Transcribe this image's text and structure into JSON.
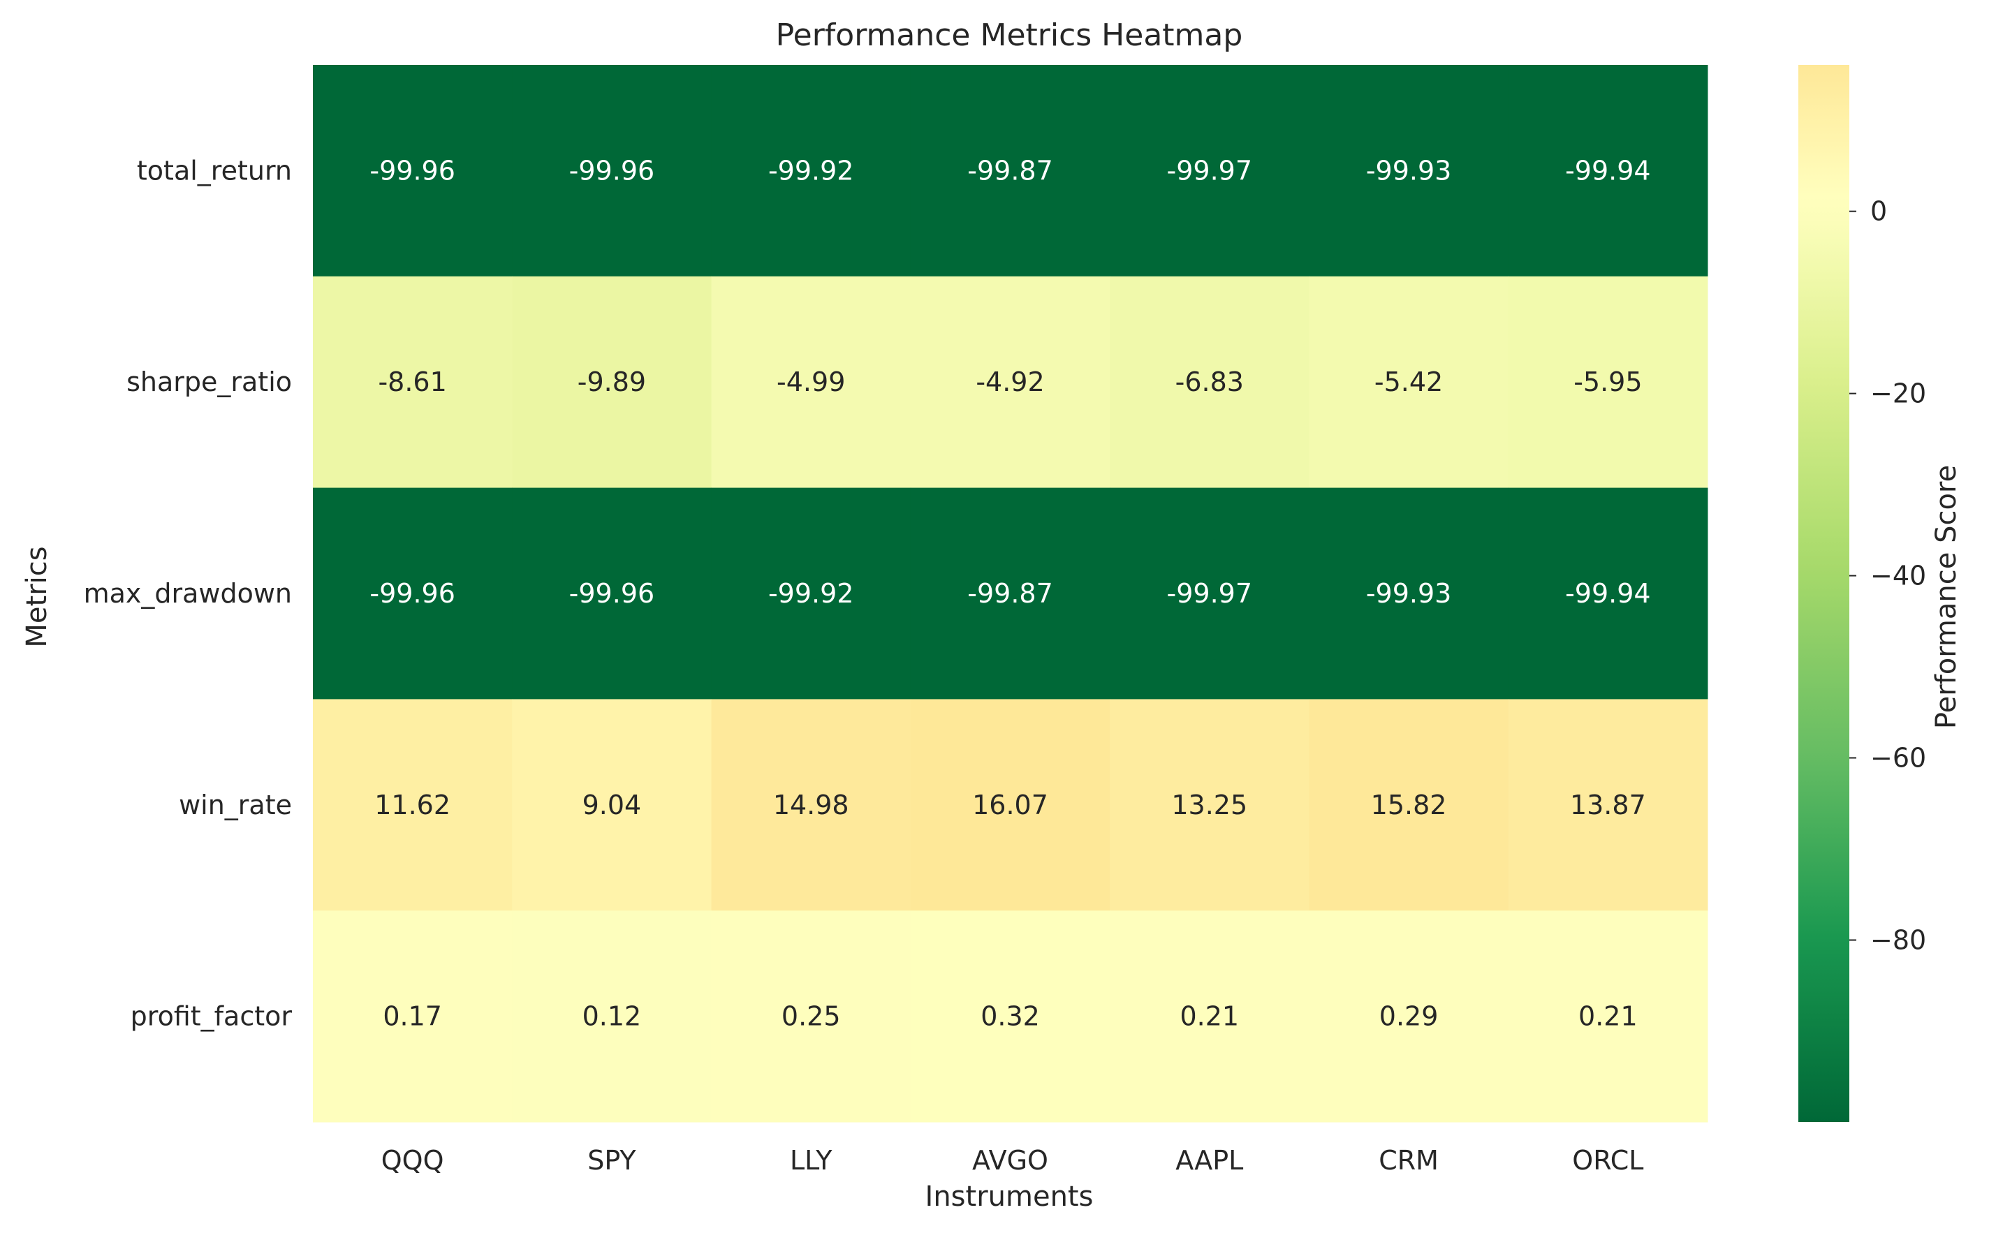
{
  "chart_data": {
    "type": "heatmap",
    "title": "Performance Metrics Heatmap",
    "xlabel": "Instruments",
    "ylabel": "Metrics",
    "x_categories": [
      "QQQ",
      "SPY",
      "LLY",
      "AVGO",
      "AAPL",
      "CRM",
      "ORCL"
    ],
    "y_categories": [
      "total_return",
      "sharpe_ratio",
      "max_drawdown",
      "win_rate",
      "profit_factor"
    ],
    "values": [
      [
        -99.96,
        -99.96,
        -99.92,
        -99.87,
        -99.97,
        -99.93,
        -99.94
      ],
      [
        -8.61,
        -9.89,
        -4.99,
        -4.92,
        -6.83,
        -5.42,
        -5.95
      ],
      [
        -99.96,
        -99.96,
        -99.92,
        -99.87,
        -99.97,
        -99.93,
        -99.94
      ],
      [
        11.62,
        9.04,
        14.98,
        16.07,
        13.25,
        15.82,
        13.87
      ],
      [
        0.17,
        0.12,
        0.25,
        0.32,
        0.21,
        0.29,
        0.21
      ]
    ],
    "value_labels": [
      [
        "-99.96",
        "-99.96",
        "-99.92",
        "-99.87",
        "-99.97",
        "-99.93",
        "-99.94"
      ],
      [
        "-8.61",
        "-9.89",
        "-4.99",
        "-4.92",
        "-6.83",
        "-5.42",
        "-5.95"
      ],
      [
        "-99.96",
        "-99.96",
        "-99.92",
        "-99.87",
        "-99.97",
        "-99.93",
        "-99.94"
      ],
      [
        "11.62",
        "9.04",
        "14.98",
        "16.07",
        "13.25",
        "15.82",
        "13.87"
      ],
      [
        "0.17",
        "0.12",
        "0.25",
        "0.32",
        "0.21",
        "0.29",
        "0.21"
      ]
    ],
    "colormap": "RdYlGn_r",
    "colorbar": {
      "label": "Performance Score",
      "range": [
        -99.97,
        16.07
      ],
      "ticks": [
        0,
        -20,
        -40,
        -60,
        -80
      ],
      "tick_labels": [
        "0",
        "−20",
        "−40",
        "−60",
        "−80"
      ]
    },
    "grid": false
  },
  "colors": {
    "text_dark": "#262626",
    "text_light": "#ffffff",
    "colormap_stops": [
      "#006837",
      "#1a9850",
      "#66bd63",
      "#a6d96a",
      "#d9ef8b",
      "#ffffbf",
      "#fee08b",
      "#fdae61",
      "#f46d43",
      "#d73027",
      "#a50026"
    ]
  }
}
